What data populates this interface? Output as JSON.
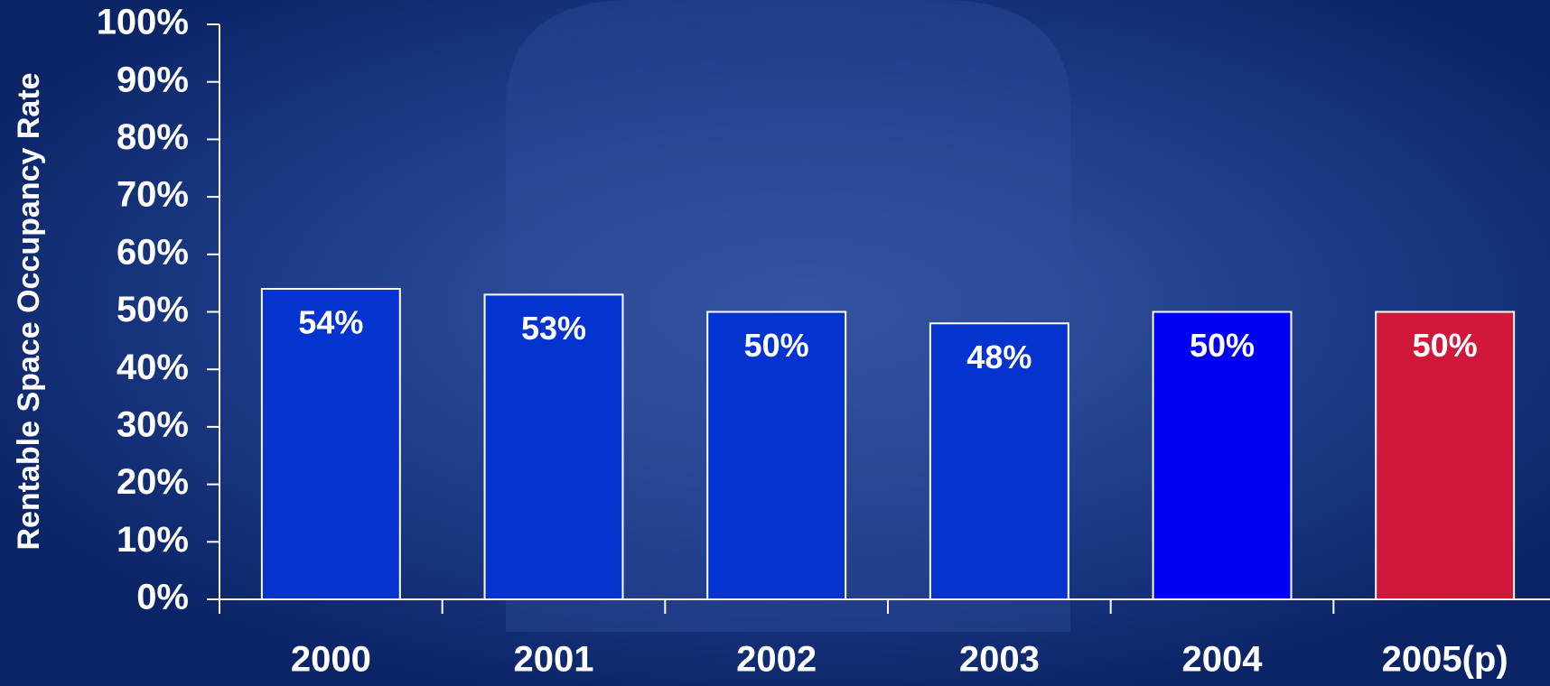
{
  "chart_data": {
    "type": "bar",
    "y_label": "Rentable Space Occupancy Rate",
    "categories": [
      "2000",
      "2001",
      "2002",
      "2003",
      "2004",
      "2005(p)"
    ],
    "values": [
      54,
      53,
      50,
      48,
      50,
      50
    ],
    "value_labels": [
      "54%",
      "53%",
      "50%",
      "48%",
      "50%",
      "50%"
    ],
    "colors": [
      "#0433cf",
      "#0433cf",
      "#0433cf",
      "#0433cf",
      "#0000f5",
      "#d1183a"
    ],
    "ylim": [
      0,
      100
    ],
    "yticks": [
      {
        "value": 0,
        "label": "0%"
      },
      {
        "value": 10,
        "label": "10%"
      },
      {
        "value": 20,
        "label": "20%"
      },
      {
        "value": 30,
        "label": "30%"
      },
      {
        "value": 40,
        "label": "40%"
      },
      {
        "value": 50,
        "label": "50%"
      },
      {
        "value": 60,
        "label": "60%"
      },
      {
        "value": 70,
        "label": "70%"
      },
      {
        "value": 80,
        "label": "80%"
      },
      {
        "value": 90,
        "label": "90%"
      },
      {
        "value": 100,
        "label": "100%"
      }
    ]
  }
}
